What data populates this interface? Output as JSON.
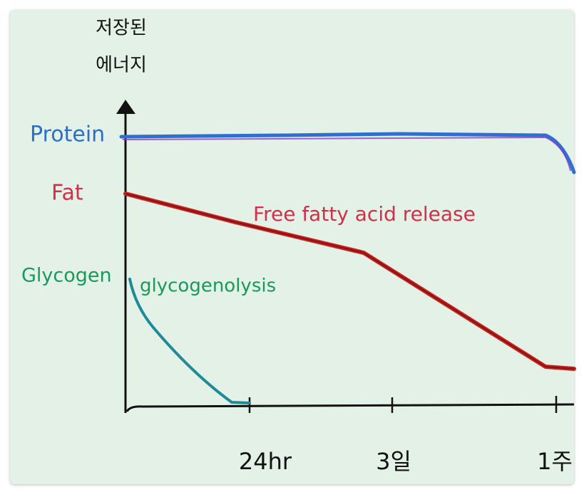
{
  "y_axis_label": {
    "line1": "저장된",
    "line2": "에너지"
  },
  "x_labels": [
    "24hr",
    "3일",
    "1주"
  ],
  "series_labels": {
    "protein": "Protein",
    "fat": "Fat",
    "glycogen": "Glycogen"
  },
  "annotations": {
    "fat": "Free fatty acid release",
    "glycogen": "glycogenolysis"
  }
}
